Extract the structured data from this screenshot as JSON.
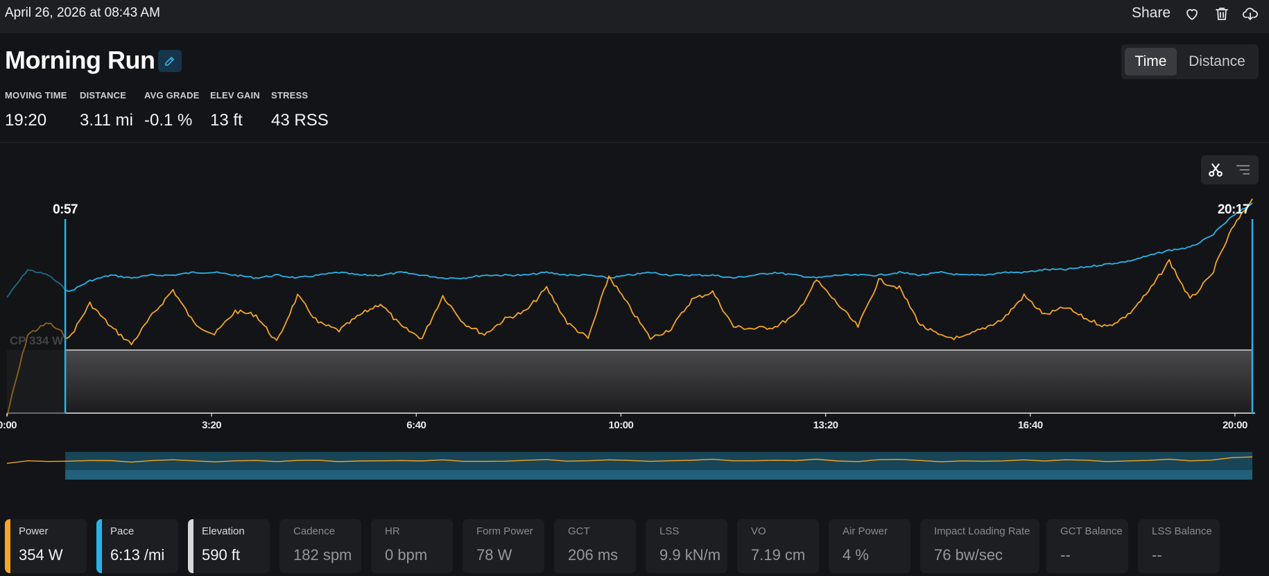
{
  "header": {
    "date": "April 26, 2026 at 08:43 AM",
    "share_label": "Share",
    "icons": [
      "heart-icon",
      "trash-icon",
      "cloud-download-icon"
    ]
  },
  "activity": {
    "title": "Morning Run",
    "edit_icon": "pencil-icon"
  },
  "view_toggle": {
    "options": [
      "Time",
      "Distance"
    ],
    "selected": "Time"
  },
  "stats": [
    {
      "label": "MOVING TIME",
      "value": "19:20"
    },
    {
      "label": "DISTANCE",
      "value": "3.11 mi"
    },
    {
      "label": "AVG GRADE",
      "value": "-0.1 %"
    },
    {
      "label": "ELEV GAIN",
      "value": "13 ft"
    },
    {
      "label": "STRESS",
      "value": "43 RSS"
    }
  ],
  "chart_tools": [
    "scissors-icon",
    "list-icon"
  ],
  "chart_data": {
    "type": "line",
    "x_unit": "time",
    "xlim": [
      "0:00",
      "20:17"
    ],
    "x_ticks": [
      "0:00",
      "3:20",
      "6:40",
      "10:00",
      "13:20",
      "16:40",
      "20:00"
    ],
    "selection": {
      "start": "0:57",
      "end": "20:17"
    },
    "cp_label": "CP 334 W",
    "cp_value": 334,
    "colors": {
      "power": "#f5a623",
      "pace": "#2ab3e8",
      "elevation": "#d8d8d8"
    },
    "series": [
      {
        "metric": "power",
        "color": "#f5a623",
        "values": [
          300,
          342,
          348,
          340,
          358,
          346,
          337,
          352,
          365,
          348,
          342,
          354,
          352,
          338,
          362,
          348,
          344,
          352,
          358,
          346,
          340,
          362,
          348,
          342,
          350,
          354,
          366,
          348,
          340,
          372,
          356,
          340,
          345,
          360,
          364,
          346,
          345,
          346,
          352,
          370,
          358,
          346,
          370,
          366,
          347,
          341,
          340,
          345,
          350,
          362,
          352,
          356,
          350,
          346,
          352,
          364,
          380,
          360,
          372,
          396,
          412
        ]
      },
      {
        "metric": "pace",
        "color": "#2ab3e8",
        "values": [
          6.34,
          6.24,
          6.26,
          6.32,
          6.28,
          6.26,
          6.27,
          6.26,
          6.26,
          6.25,
          6.25,
          6.26,
          6.27,
          6.26,
          6.27,
          6.26,
          6.25,
          6.26,
          6.26,
          6.25,
          6.26,
          6.27,
          6.27,
          6.26,
          6.26,
          6.26,
          6.25,
          6.26,
          6.26,
          6.27,
          6.26,
          6.25,
          6.26,
          6.26,
          6.26,
          6.27,
          6.26,
          6.25,
          6.26,
          6.27,
          6.26,
          6.26,
          6.26,
          6.25,
          6.26,
          6.25,
          6.26,
          6.26,
          6.25,
          6.25,
          6.24,
          6.24,
          6.23,
          6.22,
          6.21,
          6.19,
          6.17,
          6.16,
          6.12,
          6.05,
          6.0
        ]
      },
      {
        "metric": "elevation",
        "color": "#d8d8d8",
        "values": [
          590,
          590,
          590,
          590,
          590,
          590,
          590,
          590,
          590,
          590,
          590,
          590,
          590,
          590,
          590,
          590,
          590,
          590,
          590,
          590,
          590,
          590,
          590,
          590,
          590,
          590,
          590,
          590,
          590,
          590,
          590,
          590,
          590,
          590,
          590,
          590,
          590,
          590,
          590,
          590,
          590,
          590,
          590,
          590,
          590,
          590,
          590,
          590,
          590,
          590,
          590,
          590,
          590,
          590,
          590,
          590,
          590,
          590,
          590,
          590,
          590
        ]
      }
    ]
  },
  "metrics": [
    {
      "label": "Power",
      "value": "354 W",
      "color": "#f5a623",
      "active": true
    },
    {
      "label": "Pace",
      "value": "6:13 /mi",
      "color": "#2ab3e8",
      "active": true
    },
    {
      "label": "Elevation",
      "value": "590 ft",
      "color": "#d8d8d8",
      "active": true
    },
    {
      "label": "Cadence",
      "value": "182 spm",
      "active": false
    },
    {
      "label": "HR",
      "value": "0 bpm",
      "active": false
    },
    {
      "label": "Form Power",
      "value": "78 W",
      "active": false
    },
    {
      "label": "GCT",
      "value": "206 ms",
      "active": false
    },
    {
      "label": "LSS",
      "value": "9.9 kN/m",
      "active": false
    },
    {
      "label": "VO",
      "value": "7.19 cm",
      "active": false
    },
    {
      "label": "Air Power",
      "value": "4 %",
      "active": false
    },
    {
      "label": "Impact Loading Rate",
      "value": "76 bw/sec",
      "active": false
    },
    {
      "label": "GCT Balance",
      "value": "--",
      "active": false
    },
    {
      "label": "LSS Balance",
      "value": "--",
      "active": false
    }
  ]
}
